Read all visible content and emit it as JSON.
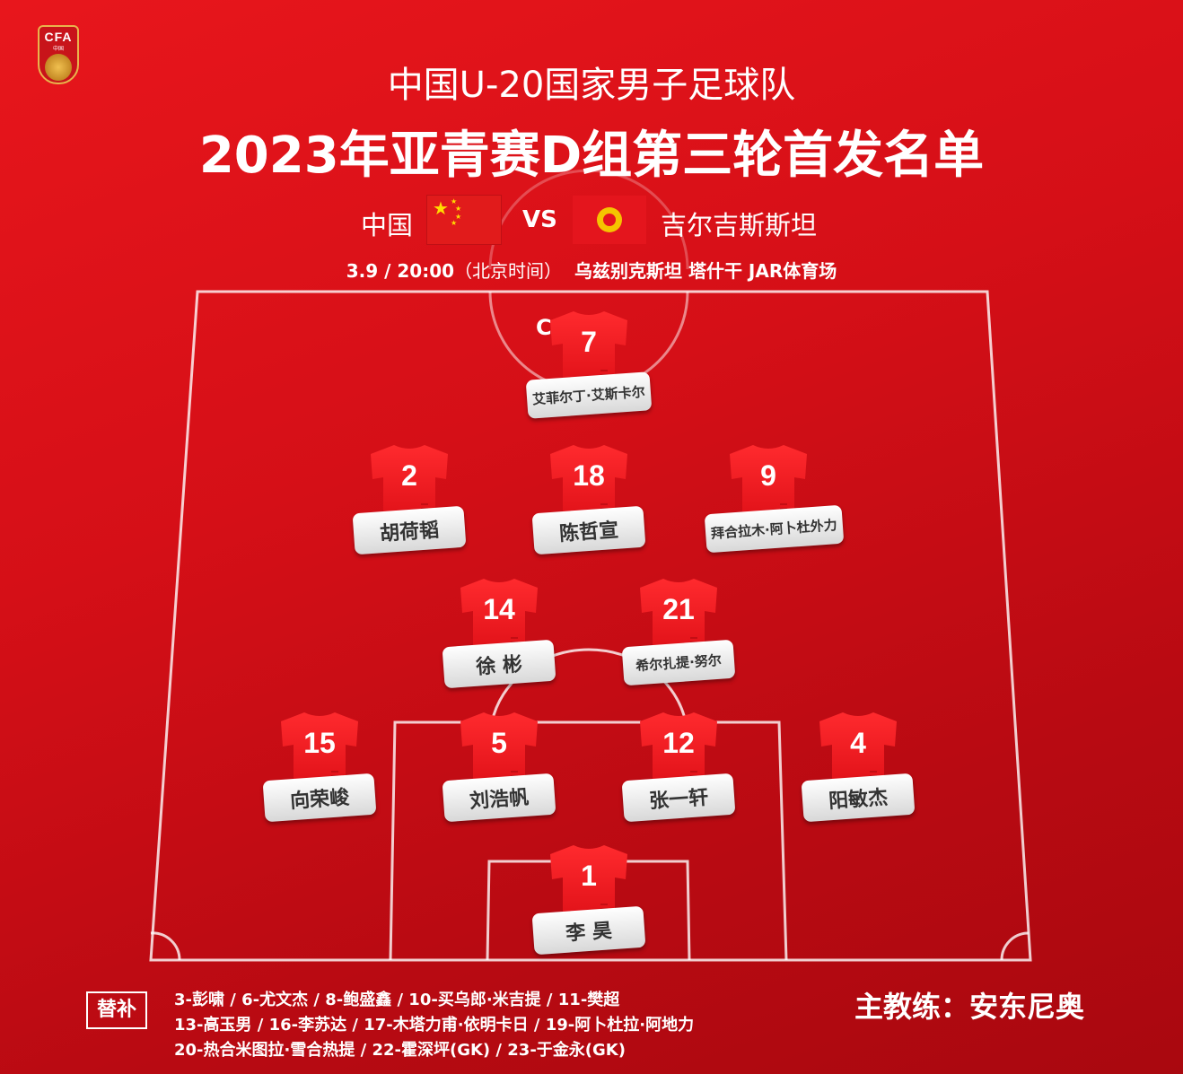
{
  "logo": {
    "text": "CFA",
    "sub": "中国"
  },
  "title": "中国U-20国家男子足球队",
  "subtitle": "2023年亚青赛D组第三轮首发名单",
  "match": {
    "home": "中国",
    "away": "吉尔吉斯斯坦",
    "vs": "VS",
    "date_time": "3.9 / 20:00",
    "timezone": "（北京时间）",
    "venue": "乌兹别克斯坦 塔什干 JAR体育场"
  },
  "colors": {
    "background": "#d50f17",
    "shirt": "#f01c22",
    "label": "#ffffff"
  },
  "players": [
    {
      "number": "7",
      "name": "艾菲尔丁·艾斯卡尔",
      "captain": "C"
    },
    {
      "number": "2",
      "name": "胡荷韬"
    },
    {
      "number": "18",
      "name": "陈哲宣"
    },
    {
      "number": "9",
      "name": "拜合拉木·阿卜杜外力"
    },
    {
      "number": "14",
      "name": "徐 彬"
    },
    {
      "number": "21",
      "name": "希尔扎提·努尔"
    },
    {
      "number": "15",
      "name": "向荣峻"
    },
    {
      "number": "5",
      "name": "刘浩帆"
    },
    {
      "number": "12",
      "name": "张一轩"
    },
    {
      "number": "4",
      "name": "阳敏杰"
    },
    {
      "number": "1",
      "name": "李 昊"
    }
  ],
  "subs": {
    "label": "替补",
    "lines": [
      "3-彭啸 / 6-尤文杰 / 8-鲍盛鑫 / 10-买乌郎·米吉提 / 11-樊超",
      "13-高玉男 / 16-李苏达 / 17-木塔力甫·依明卡日 / 19-阿卜杜拉·阿地力",
      "20-热合米图拉·雪合热提 / 22-霍深坪(GK) / 23-于金永(GK)"
    ]
  },
  "coach": "主教练：安东尼奥"
}
